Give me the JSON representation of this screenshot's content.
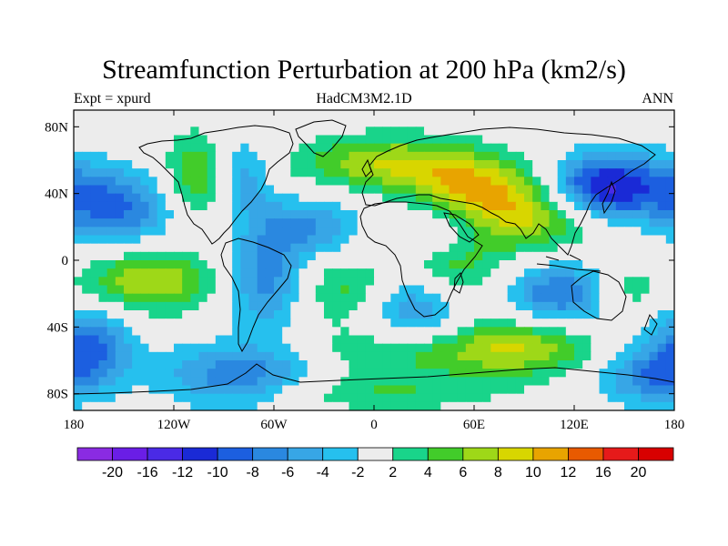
{
  "title": "Streamfunction Perturbation at 200 hPa (km2/s)",
  "subtitle_left": "Expt = xpurd",
  "subtitle_center": "HadCM3M2.1D",
  "subtitle_right": "ANN",
  "chart_data": {
    "type": "heatmap",
    "projection": "cylindrical-equidistant",
    "lon_range": [
      -180,
      180
    ],
    "lat_range": [
      -90,
      90
    ],
    "x_ticks": [
      {
        "value": -180,
        "label": "180"
      },
      {
        "value": -120,
        "label": "120W"
      },
      {
        "value": -60,
        "label": "60W"
      },
      {
        "value": 0,
        "label": "0"
      },
      {
        "value": 60,
        "label": "60E"
      },
      {
        "value": 120,
        "label": "120E"
      },
      {
        "value": 180,
        "label": "180"
      }
    ],
    "y_ticks": [
      {
        "value": 80,
        "label": "80N"
      },
      {
        "value": 40,
        "label": "40N"
      },
      {
        "value": 0,
        "label": "0"
      },
      {
        "value": -40,
        "label": "40S"
      },
      {
        "value": -80,
        "label": "80S"
      }
    ],
    "colorbar": {
      "levels": [
        -20,
        -16,
        -12,
        -10,
        -8,
        -6,
        -4,
        -2,
        2,
        4,
        6,
        8,
        10,
        12,
        16,
        20
      ],
      "labels": [
        "-20",
        "-16",
        "-12",
        "-10",
        "-8",
        "-6",
        "-4",
        "-2",
        "2",
        "4",
        "6",
        "8",
        "10",
        "12",
        "16",
        "20"
      ],
      "colors": [
        "#8a2be2",
        "#6a1ee6",
        "#4a2ae6",
        "#1a2ad6",
        "#1c5fe0",
        "#2a88e0",
        "#37a6e6",
        "#26c0ee",
        "#ececec",
        "#19d48a",
        "#42cc2a",
        "#9ed818",
        "#d8d600",
        "#e8a400",
        "#e85a00",
        "#e61a1a",
        "#d80000"
      ]
    },
    "anomalies": [
      {
        "lon": 130,
        "lat": 42,
        "amp": -11,
        "sx": 22,
        "sy": 14
      },
      {
        "lon": 160,
        "lat": 45,
        "amp": -6,
        "sx": 28,
        "sy": 14
      },
      {
        "lon": 10,
        "lat": 58,
        "amp": 8,
        "sx": 40,
        "sy": 12
      },
      {
        "lon": 95,
        "lat": 30,
        "amp": 10,
        "sx": 32,
        "sy": 16
      },
      {
        "lon": 55,
        "lat": 45,
        "amp": 6,
        "sx": 22,
        "sy": 12
      },
      {
        "lon": -105,
        "lat": 50,
        "amp": 7,
        "sx": 14,
        "sy": 18
      },
      {
        "lon": -80,
        "lat": 50,
        "amp": -6,
        "sx": 13,
        "sy": 16
      },
      {
        "lon": -155,
        "lat": 30,
        "amp": -8,
        "sx": 26,
        "sy": 16
      },
      {
        "lon": -40,
        "lat": 20,
        "amp": -6,
        "sx": 22,
        "sy": 13
      },
      {
        "lon": 35,
        "lat": 15,
        "amp": -5,
        "sx": 20,
        "sy": 10
      },
      {
        "lon": 45,
        "lat": -5,
        "amp": 6,
        "sx": 25,
        "sy": 18
      },
      {
        "lon": -135,
        "lat": -12,
        "amp": 8,
        "sx": 28,
        "sy": 14
      },
      {
        "lon": -65,
        "lat": -12,
        "amp": -7,
        "sx": 16,
        "sy": 22
      },
      {
        "lon": -15,
        "lat": -18,
        "amp": 5,
        "sx": 20,
        "sy": 14
      },
      {
        "lon": 25,
        "lat": -28,
        "amp": -8,
        "sx": 22,
        "sy": 16
      },
      {
        "lon": 110,
        "lat": -20,
        "amp": -8,
        "sx": 24,
        "sy": 14
      },
      {
        "lon": 150,
        "lat": -18,
        "amp": 4,
        "sx": 14,
        "sy": 10
      },
      {
        "lon": -170,
        "lat": -50,
        "amp": -8,
        "sx": 18,
        "sy": 16
      },
      {
        "lon": -80,
        "lat": -70,
        "amp": -8,
        "sx": 35,
        "sy": 14
      },
      {
        "lon": 20,
        "lat": -55,
        "amp": 5,
        "sx": 45,
        "sy": 12
      },
      {
        "lon": 90,
        "lat": -52,
        "amp": 7,
        "sx": 30,
        "sy": 12
      },
      {
        "lon": 165,
        "lat": -70,
        "amp": -7,
        "sx": 22,
        "sy": 12
      },
      {
        "lon": -10,
        "lat": -80,
        "amp": 4,
        "sx": 60,
        "sy": 8
      }
    ]
  }
}
